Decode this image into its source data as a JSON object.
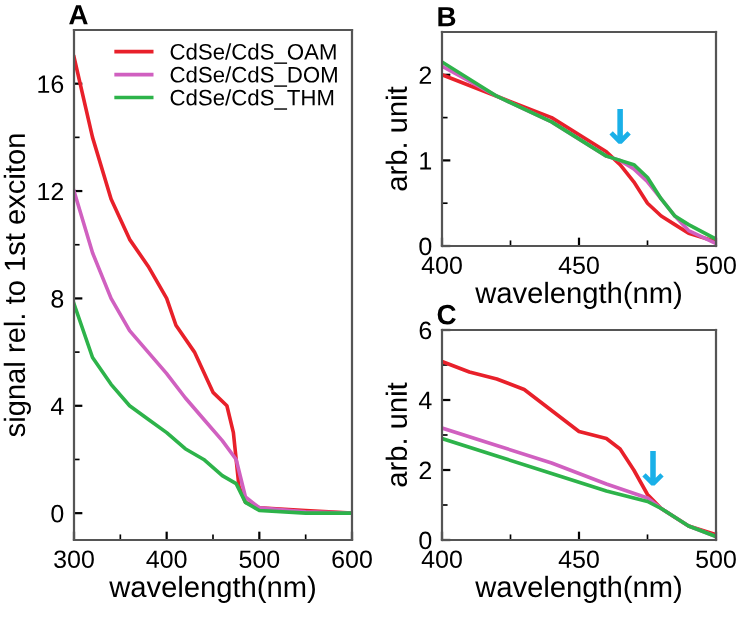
{
  "chart_data": [
    {
      "type": "line",
      "title": "A",
      "xlabel": "wavelength(nm)",
      "ylabel": "signal rel. to 1st exciton",
      "xlim": [
        300,
        600
      ],
      "ylim": [
        -1,
        18
      ],
      "xticks": [
        300,
        {
          "value": 350,
          "label": null
        },
        400,
        {
          "value": 450,
          "label": null
        },
        500,
        {
          "value": 550,
          "label": null
        },
        600
      ],
      "yticks": [
        0,
        {
          "value": 2,
          "label": null
        },
        4,
        {
          "value": 6,
          "label": null
        },
        8,
        {
          "value": 10,
          "label": null
        },
        12,
        {
          "value": 14,
          "label": null
        },
        16
      ],
      "legend": "top right",
      "grid": false,
      "series": [
        {
          "name": "CdSe/CdS_OAM",
          "color": "#e8202a",
          "x": [
            300,
            320,
            340,
            360,
            380,
            400,
            410,
            430,
            450,
            465,
            472,
            478,
            485,
            500,
            550,
            600
          ],
          "values": [
            17,
            14,
            11.7,
            10.2,
            9.2,
            8,
            7,
            6,
            4.5,
            4,
            3,
            1,
            0.4,
            0.2,
            0.1,
            0
          ]
        },
        {
          "name": "CdSe/CdS_DOM",
          "color": "#d060c0",
          "x": [
            300,
            320,
            340,
            360,
            380,
            400,
            420,
            440,
            460,
            475,
            485,
            500,
            550,
            600
          ],
          "values": [
            12,
            9.7,
            8,
            6.8,
            6,
            5.2,
            4.3,
            3.5,
            2.7,
            2,
            0.6,
            0.2,
            0.05,
            0
          ]
        },
        {
          "name": "CdSe/CdS_THM",
          "color": "#2db34a",
          "x": [
            300,
            320,
            340,
            360,
            380,
            400,
            420,
            440,
            460,
            475,
            485,
            500,
            550,
            600
          ],
          "values": [
            7.8,
            5.8,
            4.8,
            4,
            3.5,
            3,
            2.4,
            2,
            1.4,
            1.1,
            0.4,
            0.1,
            0,
            0
          ]
        }
      ]
    },
    {
      "type": "line",
      "title": "B",
      "xlabel": "wavelength(nm)",
      "ylabel": "arb. unit",
      "xlim": [
        400,
        500
      ],
      "ylim": [
        0,
        2.5
      ],
      "xticks": [
        400,
        {
          "value": 425,
          "label": null
        },
        450,
        {
          "value": 475,
          "label": null
        },
        500
      ],
      "yticks": [
        0,
        {
          "value": 0.5,
          "label": null
        },
        1,
        {
          "value": 1.5,
          "label": null
        },
        2
      ],
      "grid": false,
      "annotations": [
        {
          "text": "↓",
          "x": 465,
          "y": 1.05
        }
      ],
      "series": [
        {
          "color": "#e8202a",
          "x": [
            400,
            420,
            440,
            460,
            465,
            470,
            475,
            480,
            485,
            490,
            500
          ],
          "values": [
            2.0,
            1.75,
            1.5,
            1.1,
            0.95,
            0.75,
            0.5,
            0.35,
            0.25,
            0.15,
            0.05
          ]
        },
        {
          "color": "#d060c0",
          "x": [
            400,
            420,
            440,
            460,
            465,
            470,
            475,
            480,
            485,
            490,
            500
          ],
          "values": [
            2.1,
            1.75,
            1.45,
            1.05,
            1.0,
            0.9,
            0.75,
            0.55,
            0.35,
            0.18,
            0.03
          ]
        },
        {
          "color": "#2db34a",
          "x": [
            400,
            420,
            440,
            460,
            465,
            470,
            475,
            480,
            485,
            490,
            500
          ],
          "values": [
            2.15,
            1.75,
            1.45,
            1.05,
            1.0,
            0.95,
            0.8,
            0.55,
            0.35,
            0.25,
            0.08
          ]
        }
      ]
    },
    {
      "type": "line",
      "title": "C",
      "xlabel": "wavelength(nm)",
      "ylabel": "arb. unit",
      "xlim": [
        400,
        500
      ],
      "ylim": [
        0,
        6
      ],
      "xticks": [
        400,
        {
          "value": 425,
          "label": null
        },
        450,
        {
          "value": 475,
          "label": null
        },
        500
      ],
      "yticks": [
        0,
        {
          "value": 1,
          "label": null
        },
        2,
        {
          "value": 3,
          "label": null
        },
        4,
        {
          "value": 5,
          "label": null
        },
        6
      ],
      "grid": false,
      "annotations": [
        {
          "text": "↓",
          "x": 477,
          "y": 1.2
        }
      ],
      "series": [
        {
          "color": "#e8202a",
          "x": [
            400,
            410,
            420,
            430,
            440,
            450,
            460,
            465,
            470,
            475,
            480,
            490,
            500
          ],
          "values": [
            5.1,
            4.8,
            4.6,
            4.3,
            3.7,
            3.1,
            2.9,
            2.6,
            2.0,
            1.3,
            0.9,
            0.4,
            0.15
          ]
        },
        {
          "color": "#d060c0",
          "x": [
            400,
            420,
            440,
            460,
            475,
            480,
            490,
            500
          ],
          "values": [
            3.2,
            2.7,
            2.2,
            1.6,
            1.2,
            0.9,
            0.4,
            0.1
          ]
        },
        {
          "color": "#2db34a",
          "x": [
            400,
            420,
            440,
            460,
            475,
            480,
            490,
            500
          ],
          "values": [
            2.9,
            2.4,
            1.9,
            1.4,
            1.1,
            0.9,
            0.4,
            0.1
          ]
        }
      ]
    }
  ]
}
